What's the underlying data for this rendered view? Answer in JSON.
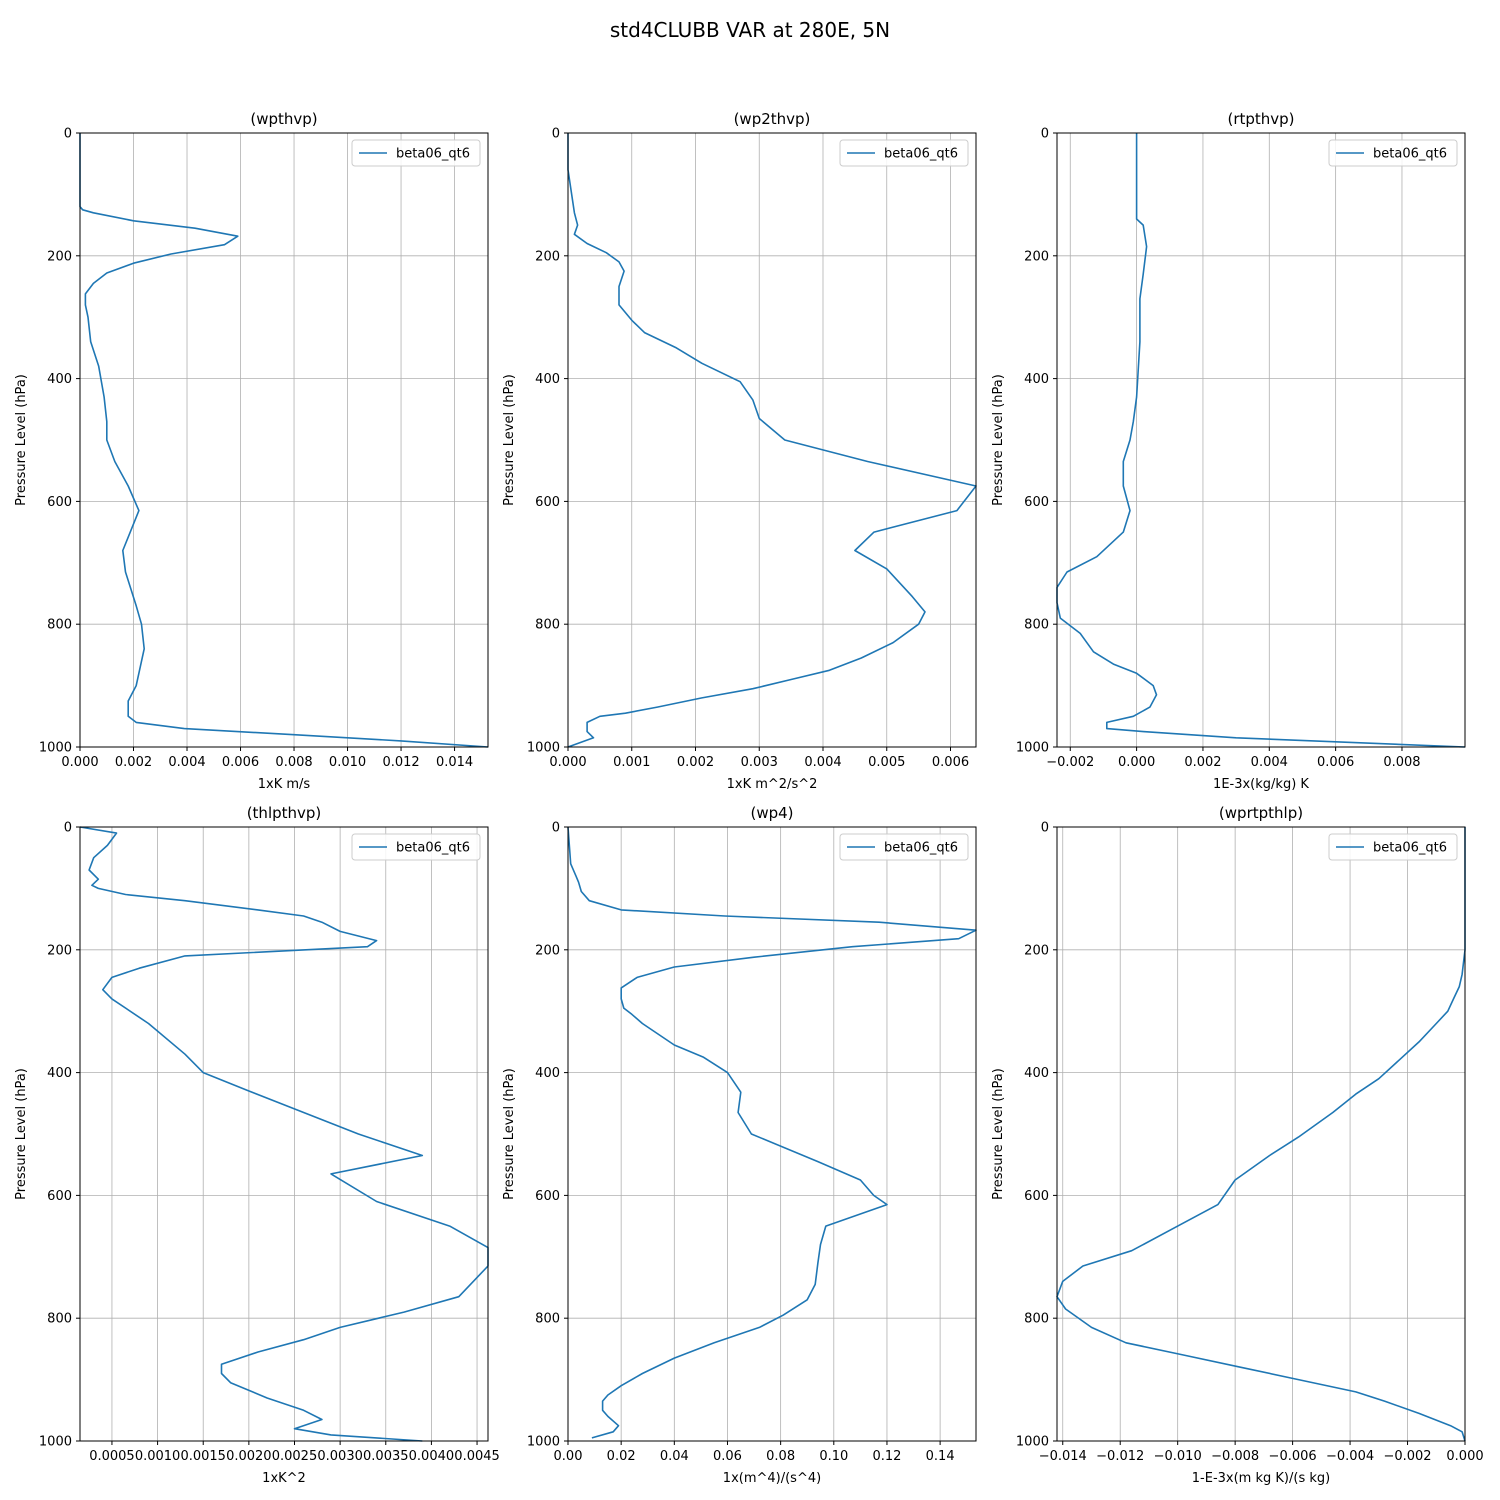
{
  "figure": {
    "title": "std4CLUBB VAR at 280E, 5N"
  },
  "colors": {
    "series": "#1f77b4",
    "grid": "#b0b0b0",
    "axis": "#000000"
  },
  "chart_data": [
    {
      "type": "line",
      "title": "(wpthvp)",
      "xlabel": "1xK m/s",
      "ylabel": "Pressure Level (hPa)",
      "xlim": [
        0,
        0.01525
      ],
      "ylim": [
        1000,
        0
      ],
      "y_inverted": true,
      "grid": true,
      "legend_position": "top-right",
      "x_ticks": [
        0,
        0.002,
        0.004,
        0.006,
        0.008,
        0.01,
        0.012,
        0.014
      ],
      "x_tick_labels": [
        "0.000",
        "0.002",
        "0.004",
        "0.006",
        "0.008",
        "0.010",
        "0.012",
        "0.014"
      ],
      "y_ticks": [
        0,
        200,
        400,
        600,
        800,
        1000
      ],
      "y_tick_labels": [
        "0",
        "200",
        "400",
        "600",
        "800",
        "1000"
      ],
      "series": [
        {
          "name": "beta06_qt6",
          "x": [
            0,
            0,
            0,
            0.0001,
            0.0005,
            0.002,
            0.0043,
            0.0059,
            0.0054,
            0.0034,
            0.002,
            0.001,
            0.0005,
            0.0002,
            0.0002,
            0.0003,
            0.0004,
            0.0007,
            0.0009,
            0.001,
            0.001,
            0.0013,
            0.0018,
            0.0022,
            0.0016,
            0.0017,
            0.0021,
            0.0023,
            0.0024,
            0.0021,
            0.0018,
            0.0018,
            0.0018,
            0.0021,
            0.0039,
            0.008,
            0.012,
            0.01525
          ],
          "y": [
            0,
            60,
            120,
            125,
            130,
            143,
            155,
            168,
            182,
            197,
            212,
            228,
            245,
            262,
            280,
            300,
            340,
            380,
            430,
            470,
            500,
            535,
            575,
            615,
            680,
            715,
            770,
            800,
            840,
            900,
            925,
            935,
            950,
            960,
            970,
            980,
            990,
            1000
          ]
        }
      ]
    },
    {
      "type": "line",
      "title": "(wp2thvp)",
      "xlabel": "1xK m^2/s^2",
      "ylabel": "Pressure Level (hPa)",
      "xlim": [
        0,
        0.0064
      ],
      "ylim": [
        1000,
        0
      ],
      "y_inverted": true,
      "grid": true,
      "legend_position": "top-right",
      "x_ticks": [
        0,
        0.001,
        0.002,
        0.003,
        0.004,
        0.005,
        0.006
      ],
      "x_tick_labels": [
        "0.000",
        "0.001",
        "0.002",
        "0.003",
        "0.004",
        "0.005",
        "0.006"
      ],
      "y_ticks": [
        0,
        200,
        400,
        600,
        800,
        1000
      ],
      "y_tick_labels": [
        "0",
        "200",
        "400",
        "600",
        "800",
        "1000"
      ],
      "series": [
        {
          "name": "beta06_qt6",
          "x": [
            0,
            0,
            0.0001,
            0.00015,
            0.0001,
            0.0003,
            0.0006,
            0.0008,
            0.00088,
            0.0008,
            0.0008,
            0.001,
            0.0012,
            0.0017,
            0.0021,
            0.0027,
            0.0029,
            0.003,
            0.0034,
            0.0047,
            0.0064,
            0.0061,
            0.0048,
            0.0045,
            0.005,
            0.0054,
            0.0056,
            0.0055,
            0.0051,
            0.0046,
            0.0041,
            0.0035,
            0.0029,
            0.0021,
            0.0014,
            0.0009,
            0.0005,
            0.0003,
            0.0003,
            0.0004,
            0
          ],
          "y": [
            0,
            60,
            130,
            150,
            165,
            180,
            195,
            210,
            225,
            250,
            280,
            305,
            325,
            350,
            375,
            405,
            435,
            465,
            500,
            535,
            575,
            615,
            650,
            680,
            710,
            755,
            780,
            800,
            830,
            855,
            875,
            890,
            905,
            920,
            935,
            945,
            950,
            960,
            975,
            985,
            1000
          ]
        }
      ]
    },
    {
      "type": "line",
      "title": "(rtpthvp)",
      "xlabel": "1E-3x(kg/kg) K",
      "ylabel": "Pressure Level (hPa)",
      "xlim": [
        -0.0024,
        0.0099
      ],
      "ylim": [
        1000,
        0
      ],
      "y_inverted": true,
      "grid": true,
      "legend_position": "top-right",
      "x_ticks": [
        -0.002,
        0,
        0.002,
        0.004,
        0.006,
        0.008
      ],
      "x_tick_labels": [
        "−0.002",
        "0.000",
        "0.002",
        "0.004",
        "0.006",
        "0.008"
      ],
      "y_ticks": [
        0,
        200,
        400,
        600,
        800,
        1000
      ],
      "y_tick_labels": [
        "0",
        "200",
        "400",
        "600",
        "800",
        "1000"
      ],
      "series": [
        {
          "name": "beta06_qt6",
          "x": [
            0,
            0,
            0,
            0.0002,
            0.0003,
            0.0002,
            0.0001,
            0.0001,
            0,
            -0.0001,
            -0.0002,
            -0.0004,
            -0.0004,
            -0.0004,
            -0.0002,
            -0.0004,
            -0.0012,
            -0.0021,
            -0.0024,
            -0.0024,
            -0.0023,
            -0.0017,
            -0.0013,
            -0.0007,
            0,
            0.0005,
            0.0006,
            0.0004,
            -0.0001,
            -0.0009,
            -0.0009,
            0.0002,
            0.003,
            0.0099
          ],
          "y": [
            0,
            100,
            140,
            150,
            185,
            230,
            270,
            340,
            430,
            470,
            500,
            535,
            555,
            575,
            615,
            650,
            690,
            715,
            740,
            765,
            790,
            815,
            845,
            865,
            880,
            900,
            915,
            935,
            950,
            960,
            970,
            975,
            985,
            1000
          ]
        }
      ]
    },
    {
      "type": "line",
      "title": "(thlpthvp)",
      "xlabel": "1xK^2",
      "ylabel": "Pressure Level (hPa)",
      "xlim": [
        0.00015,
        0.00462
      ],
      "ylim": [
        1000,
        0
      ],
      "y_inverted": true,
      "grid": true,
      "legend_position": "top-right",
      "x_ticks": [
        0.0005,
        0.001,
        0.0015,
        0.002,
        0.0025,
        0.003,
        0.0035,
        0.004,
        0.0045
      ],
      "x_tick_labels": [
        "0.0005",
        "0.0010",
        "0.0015",
        "0.0020",
        "0.0025",
        "0.0030",
        "0.0035",
        "0.0040",
        "0.0045"
      ],
      "y_ticks": [
        0,
        200,
        400,
        600,
        800,
        1000
      ],
      "y_tick_labels": [
        "0",
        "200",
        "400",
        "600",
        "800",
        "1000"
      ],
      "series": [
        {
          "name": "beta06_qt6",
          "x": [
            0.00015,
            0.00055,
            0.00045,
            0.0003,
            0.00025,
            0.00035,
            0.00028,
            0.00035,
            0.00065,
            0.0013,
            0.0021,
            0.0026,
            0.0028,
            0.003,
            0.0034,
            0.0033,
            0.0013,
            0.0008,
            0.0005,
            0.0004,
            0.0005,
            0.0009,
            0.0013,
            0.0015,
            0.002,
            0.0032,
            0.0039,
            0.0029,
            0.0034,
            0.0042,
            0.00462,
            0.00462,
            0.0043,
            0.0037,
            0.003,
            0.0026,
            0.0021,
            0.0017,
            0.0017,
            0.0018,
            0.0022,
            0.0026,
            0.0028,
            0.0025,
            0.0029,
            0.0039
          ],
          "y": [
            0,
            10,
            30,
            50,
            70,
            85,
            95,
            100,
            110,
            120,
            135,
            145,
            155,
            170,
            185,
            195,
            210,
            230,
            245,
            265,
            280,
            320,
            370,
            400,
            430,
            500,
            535,
            565,
            610,
            650,
            685,
            715,
            765,
            790,
            815,
            835,
            855,
            875,
            890,
            905,
            930,
            950,
            965,
            980,
            990,
            1000
          ]
        }
      ]
    },
    {
      "type": "line",
      "title": "(wp4)",
      "xlabel": "1x(m^4)/(s^4)",
      "ylabel": "Pressure Level (hPa)",
      "xlim": [
        0,
        0.1535
      ],
      "ylim": [
        1000,
        0
      ],
      "y_inverted": true,
      "grid": true,
      "legend_position": "top-right",
      "x_ticks": [
        0,
        0.02,
        0.04,
        0.06,
        0.08,
        0.1,
        0.12,
        0.14
      ],
      "x_tick_labels": [
        "0.00",
        "0.02",
        "0.04",
        "0.06",
        "0.08",
        "0.10",
        "0.12",
        "0.14"
      ],
      "y_ticks": [
        0,
        200,
        400,
        600,
        800,
        1000
      ],
      "y_tick_labels": [
        "0",
        "200",
        "400",
        "600",
        "800",
        "1000"
      ],
      "series": [
        {
          "name": "beta06_qt6",
          "x": [
            0,
            0.001,
            0.003,
            0.004,
            0.005,
            0.008,
            0.02,
            0.059,
            0.117,
            0.1535,
            0.147,
            0.107,
            0.07,
            0.04,
            0.026,
            0.02,
            0.02,
            0.021,
            0.024,
            0.028,
            0.04,
            0.051,
            0.06,
            0.065,
            0.064,
            0.069,
            0.094,
            0.11,
            0.115,
            0.12,
            0.097,
            0.095,
            0.094,
            0.093,
            0.09,
            0.081,
            0.072,
            0.055,
            0.04,
            0.028,
            0.02,
            0.015,
            0.013,
            0.013,
            0.015,
            0.019,
            0.017,
            0.009
          ],
          "y": [
            0,
            60,
            80,
            90,
            105,
            120,
            135,
            145,
            155,
            168,
            182,
            195,
            212,
            228,
            245,
            262,
            280,
            295,
            305,
            320,
            355,
            375,
            400,
            432,
            465,
            500,
            545,
            575,
            600,
            615,
            650,
            680,
            710,
            745,
            770,
            795,
            815,
            840,
            865,
            890,
            910,
            925,
            935,
            950,
            960,
            975,
            985,
            995
          ]
        }
      ]
    },
    {
      "type": "line",
      "title": "(wprtpthlp)",
      "xlabel": "1-E-3x(m kg K)/(s kg)",
      "ylabel": "Pressure Level (hPa)",
      "xlim": [
        -0.0142,
        0
      ],
      "ylim": [
        1000,
        0
      ],
      "y_inverted": true,
      "grid": true,
      "legend_position": "top-right",
      "x_ticks": [
        -0.014,
        -0.012,
        -0.01,
        -0.008,
        -0.006,
        -0.004,
        -0.002,
        0
      ],
      "x_tick_labels": [
        "−0.014",
        "−0.012",
        "−0.010",
        "−0.008",
        "−0.006",
        "−0.004",
        "−0.002",
        "0.000"
      ],
      "y_ticks": [
        0,
        200,
        400,
        600,
        800,
        1000
      ],
      "y_tick_labels": [
        "0",
        "200",
        "400",
        "600",
        "800",
        "1000"
      ],
      "series": [
        {
          "name": "beta06_qt6",
          "x": [
            0,
            0,
            0,
            -0.0001,
            -0.0002,
            -0.0004,
            -0.0006,
            -0.001,
            -0.0016,
            -0.0023,
            -0.003,
            -0.0038,
            -0.0046,
            -0.0058,
            -0.0068,
            -0.008,
            -0.0086,
            -0.01,
            -0.0116,
            -0.0133,
            -0.014,
            -0.0142,
            -0.0139,
            -0.013,
            -0.0118,
            -0.0098,
            -0.0078,
            -0.0058,
            -0.0038,
            -0.0028,
            -0.0016,
            -0.0005,
            -0.0001,
            0
          ],
          "y": [
            0,
            100,
            200,
            240,
            260,
            280,
            300,
            320,
            350,
            380,
            410,
            435,
            465,
            505,
            535,
            575,
            615,
            650,
            690,
            715,
            740,
            765,
            785,
            815,
            840,
            860,
            880,
            900,
            920,
            935,
            955,
            975,
            985,
            1000
          ]
        }
      ]
    }
  ]
}
